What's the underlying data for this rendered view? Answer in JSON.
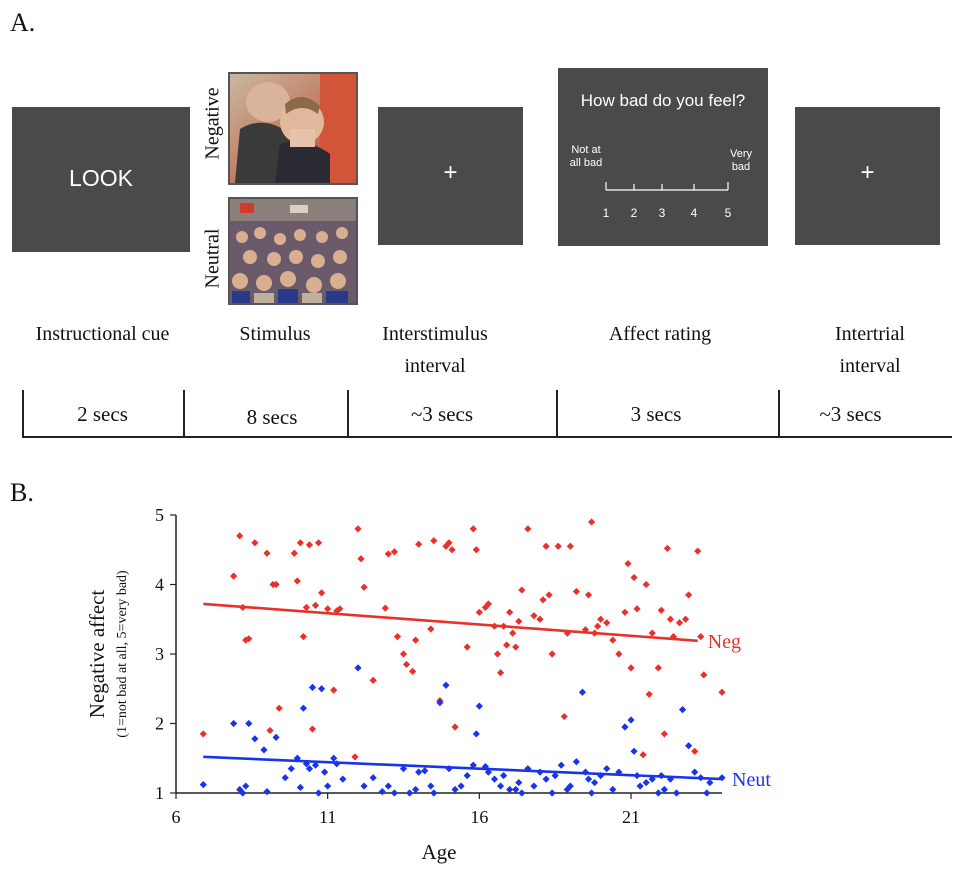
{
  "panel_a": {
    "label": "A.",
    "cue_text": "LOOK",
    "stimulus_negative_label": "Negative",
    "stimulus_neutral_label": "Neutral",
    "fixation": "+",
    "rating": {
      "question": "How bad do you feel?",
      "left_anchor": "Not at all bad",
      "right_anchor": "Very bad",
      "scale": [
        "1",
        "2",
        "3",
        "4",
        "5"
      ]
    },
    "steps": [
      {
        "label": "Instructional cue",
        "duration": "2 secs"
      },
      {
        "label": "Stimulus",
        "duration": "8 secs"
      },
      {
        "label": "Interstimulus interval",
        "duration": "~3 secs"
      },
      {
        "label": "Affect rating",
        "duration": "3 secs"
      },
      {
        "label": "Intertrial interval",
        "duration": "~3 secs"
      }
    ]
  },
  "panel_b": {
    "label": "B."
  },
  "chart_data": {
    "type": "scatter",
    "title": "",
    "xlabel": "Age",
    "ylabel": "Negative affect",
    "ylabel_sub": "(1=not bad at all, 5=very bad)",
    "xlim": [
      6,
      24
    ],
    "ylim": [
      1,
      5
    ],
    "xticks": [
      "6",
      "11",
      "16",
      "21"
    ],
    "yticks": [
      "1",
      "2",
      "3",
      "4",
      "5"
    ],
    "grid": false,
    "series": [
      {
        "name": "Neg",
        "color": "#e8312a",
        "trend": {
          "x": [
            6.9,
            23.2
          ],
          "y": [
            3.72,
            3.19
          ]
        },
        "points": [
          [
            6.9,
            1.85
          ],
          [
            7.9,
            4.12
          ],
          [
            8.1,
            4.7
          ],
          [
            8.2,
            3.67
          ],
          [
            8.3,
            3.2
          ],
          [
            8.4,
            3.22
          ],
          [
            8.6,
            4.6
          ],
          [
            9.0,
            4.45
          ],
          [
            9.1,
            1.9
          ],
          [
            9.2,
            4.0
          ],
          [
            9.3,
            4.0
          ],
          [
            9.4,
            2.22
          ],
          [
            9.9,
            4.45
          ],
          [
            10.0,
            4.05
          ],
          [
            10.1,
            4.6
          ],
          [
            10.2,
            3.25
          ],
          [
            10.3,
            3.67
          ],
          [
            10.4,
            4.57
          ],
          [
            10.5,
            1.92
          ],
          [
            10.6,
            3.7
          ],
          [
            10.7,
            4.6
          ],
          [
            10.8,
            3.88
          ],
          [
            11.0,
            3.65
          ],
          [
            11.2,
            2.48
          ],
          [
            11.3,
            3.62
          ],
          [
            11.4,
            3.65
          ],
          [
            11.9,
            1.52
          ],
          [
            12.0,
            4.8
          ],
          [
            12.1,
            4.37
          ],
          [
            12.2,
            3.96
          ],
          [
            12.5,
            2.62
          ],
          [
            12.9,
            3.66
          ],
          [
            13.0,
            4.44
          ],
          [
            13.2,
            4.47
          ],
          [
            13.3,
            3.25
          ],
          [
            13.5,
            3.0
          ],
          [
            13.6,
            2.85
          ],
          [
            13.8,
            2.75
          ],
          [
            13.9,
            3.2
          ],
          [
            14.0,
            4.58
          ],
          [
            14.4,
            3.36
          ],
          [
            14.5,
            4.63
          ],
          [
            14.7,
            2.33
          ],
          [
            14.9,
            4.55
          ],
          [
            15.0,
            4.6
          ],
          [
            15.1,
            4.5
          ],
          [
            15.2,
            1.95
          ],
          [
            15.6,
            3.1
          ],
          [
            15.8,
            4.8
          ],
          [
            15.9,
            4.5
          ],
          [
            16.0,
            3.6
          ],
          [
            16.2,
            3.67
          ],
          [
            16.3,
            3.72
          ],
          [
            16.5,
            3.4
          ],
          [
            16.6,
            3.0
          ],
          [
            16.7,
            2.73
          ],
          [
            16.8,
            3.4
          ],
          [
            16.9,
            3.13
          ],
          [
            17.0,
            3.6
          ],
          [
            17.1,
            3.3
          ],
          [
            17.2,
            3.1
          ],
          [
            17.3,
            3.47
          ],
          [
            17.4,
            3.92
          ],
          [
            17.6,
            4.8
          ],
          [
            17.8,
            3.55
          ],
          [
            18.0,
            3.5
          ],
          [
            18.1,
            3.78
          ],
          [
            18.2,
            4.55
          ],
          [
            18.3,
            3.85
          ],
          [
            18.4,
            3.0
          ],
          [
            18.6,
            4.55
          ],
          [
            18.8,
            2.1
          ],
          [
            18.9,
            3.3
          ],
          [
            19.0,
            4.55
          ],
          [
            19.2,
            3.9
          ],
          [
            19.5,
            3.35
          ],
          [
            19.6,
            3.85
          ],
          [
            19.7,
            4.9
          ],
          [
            19.8,
            3.3
          ],
          [
            19.9,
            3.4
          ],
          [
            20.0,
            3.5
          ],
          [
            20.2,
            3.45
          ],
          [
            20.4,
            3.2
          ],
          [
            20.6,
            3.0
          ],
          [
            20.8,
            3.6
          ],
          [
            20.9,
            4.3
          ],
          [
            21.0,
            2.8
          ],
          [
            21.1,
            4.1
          ],
          [
            21.2,
            3.65
          ],
          [
            21.4,
            1.55
          ],
          [
            21.5,
            4.0
          ],
          [
            21.6,
            2.42
          ],
          [
            21.7,
            3.3
          ],
          [
            21.9,
            2.8
          ],
          [
            22.0,
            3.63
          ],
          [
            22.1,
            1.85
          ],
          [
            22.2,
            4.52
          ],
          [
            22.3,
            3.5
          ],
          [
            22.4,
            3.25
          ],
          [
            22.6,
            3.45
          ],
          [
            22.8,
            3.5
          ],
          [
            22.9,
            3.85
          ],
          [
            23.1,
            1.6
          ],
          [
            23.2,
            4.48
          ],
          [
            23.3,
            3.25
          ],
          [
            23.4,
            2.7
          ],
          [
            24.0,
            2.45
          ]
        ]
      },
      {
        "name": "Neut",
        "color": "#1a35e8",
        "trend": {
          "x": [
            6.9,
            24.0
          ],
          "y": [
            1.52,
            1.2
          ]
        },
        "points": [
          [
            6.9,
            1.12
          ],
          [
            7.9,
            2.0
          ],
          [
            8.1,
            1.05
          ],
          [
            8.2,
            1.0
          ],
          [
            8.3,
            1.1
          ],
          [
            8.4,
            2.0
          ],
          [
            8.6,
            1.78
          ],
          [
            8.9,
            1.62
          ],
          [
            9.0,
            1.02
          ],
          [
            9.3,
            1.8
          ],
          [
            9.6,
            1.22
          ],
          [
            9.8,
            1.35
          ],
          [
            10.0,
            1.5
          ],
          [
            10.1,
            1.08
          ],
          [
            10.2,
            2.22
          ],
          [
            10.3,
            1.42
          ],
          [
            10.4,
            1.35
          ],
          [
            10.5,
            2.52
          ],
          [
            10.6,
            1.4
          ],
          [
            10.7,
            1.0
          ],
          [
            10.8,
            2.5
          ],
          [
            10.9,
            1.3
          ],
          [
            11.0,
            1.1
          ],
          [
            11.2,
            1.5
          ],
          [
            11.3,
            1.42
          ],
          [
            11.5,
            1.2
          ],
          [
            12.0,
            2.8
          ],
          [
            12.2,
            1.1
          ],
          [
            12.5,
            1.22
          ],
          [
            12.8,
            1.02
          ],
          [
            13.0,
            1.1
          ],
          [
            13.2,
            1.0
          ],
          [
            13.5,
            1.35
          ],
          [
            13.7,
            1.0
          ],
          [
            13.9,
            1.05
          ],
          [
            14.0,
            1.3
          ],
          [
            14.2,
            1.32
          ],
          [
            14.4,
            1.1
          ],
          [
            14.5,
            1.0
          ],
          [
            14.7,
            2.3
          ],
          [
            14.9,
            2.55
          ],
          [
            15.0,
            1.35
          ],
          [
            15.2,
            1.05
          ],
          [
            15.4,
            1.1
          ],
          [
            15.6,
            1.25
          ],
          [
            15.8,
            1.4
          ],
          [
            15.9,
            1.85
          ],
          [
            16.0,
            2.25
          ],
          [
            16.2,
            1.38
          ],
          [
            16.3,
            1.3
          ],
          [
            16.5,
            1.2
          ],
          [
            16.7,
            1.1
          ],
          [
            16.8,
            1.25
          ],
          [
            17.0,
            1.05
          ],
          [
            17.2,
            1.05
          ],
          [
            17.3,
            1.15
          ],
          [
            17.4,
            1.0
          ],
          [
            17.6,
            1.35
          ],
          [
            17.8,
            1.1
          ],
          [
            18.0,
            1.3
          ],
          [
            18.2,
            1.2
          ],
          [
            18.4,
            1.0
          ],
          [
            18.5,
            1.25
          ],
          [
            18.7,
            1.4
          ],
          [
            18.9,
            1.05
          ],
          [
            19.0,
            1.1
          ],
          [
            19.2,
            1.45
          ],
          [
            19.4,
            2.45
          ],
          [
            19.5,
            1.3
          ],
          [
            19.6,
            1.2
          ],
          [
            19.7,
            1.0
          ],
          [
            19.8,
            1.15
          ],
          [
            20.0,
            1.25
          ],
          [
            20.2,
            1.35
          ],
          [
            20.4,
            1.05
          ],
          [
            20.6,
            1.3
          ],
          [
            20.8,
            1.95
          ],
          [
            21.0,
            2.05
          ],
          [
            21.1,
            1.6
          ],
          [
            21.2,
            1.25
          ],
          [
            21.3,
            1.1
          ],
          [
            21.5,
            1.15
          ],
          [
            21.7,
            1.2
          ],
          [
            21.9,
            1.0
          ],
          [
            22.0,
            1.25
          ],
          [
            22.1,
            1.05
          ],
          [
            22.3,
            1.2
          ],
          [
            22.5,
            1.0
          ],
          [
            22.7,
            2.2
          ],
          [
            22.9,
            1.68
          ],
          [
            23.1,
            1.3
          ],
          [
            23.3,
            1.22
          ],
          [
            23.5,
            1.0
          ],
          [
            23.6,
            1.15
          ],
          [
            24.0,
            1.22
          ]
        ]
      }
    ]
  }
}
